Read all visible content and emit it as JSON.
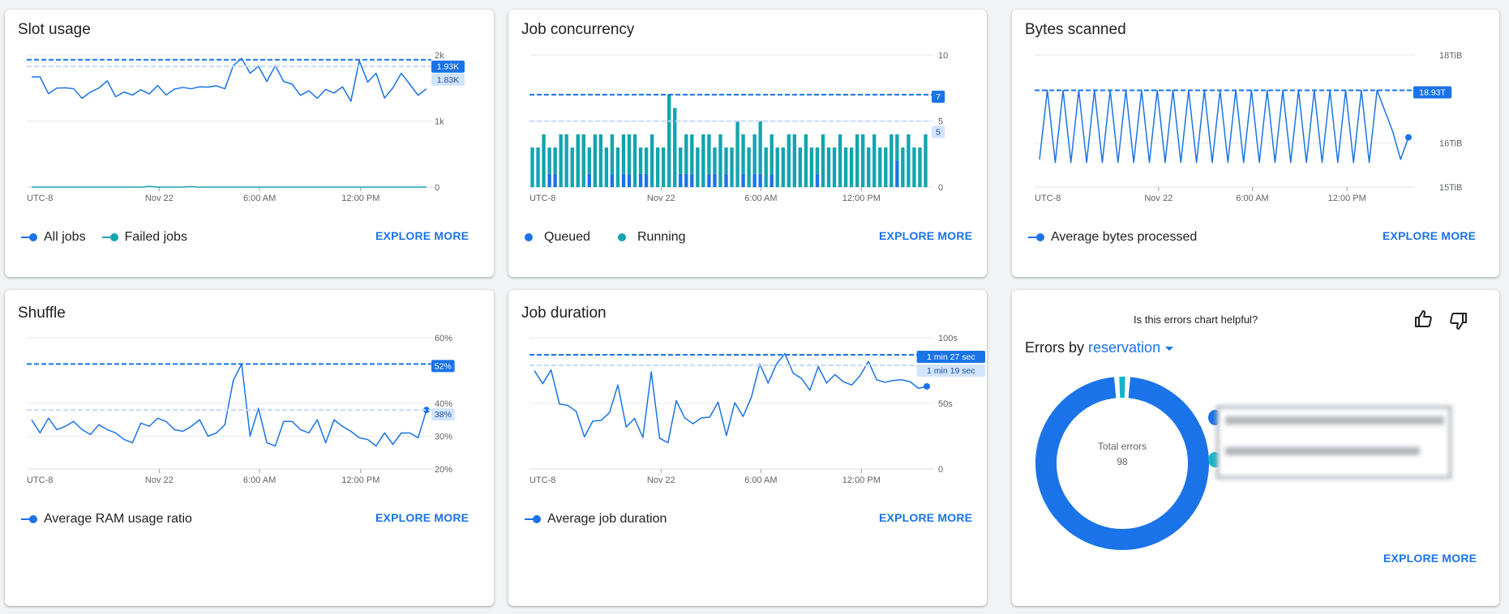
{
  "colors": {
    "blue": "#1a73e8",
    "teal": "#12a4af",
    "ref_light": "#c6dafc",
    "grid": "#e8eaed",
    "text": "#202124",
    "axis_text": "#5f6368"
  },
  "explore_label": "EXPLORE MORE",
  "slot": {
    "title": "Slot usage",
    "legend": [
      {
        "label": "All jobs",
        "color": "#1a73e8"
      },
      {
        "label": "Failed jobs",
        "color": "#12a4af"
      }
    ]
  },
  "concurrency": {
    "title": "Job concurrency",
    "legend": [
      {
        "label": "Queued",
        "color": "#1a73e8"
      },
      {
        "label": "Running",
        "color": "#12a4af"
      }
    ]
  },
  "bytes": {
    "title": "Bytes scanned",
    "legend": [
      {
        "label": "Average bytes processed",
        "color": "#1a73e8"
      }
    ]
  },
  "shuffle": {
    "title": "Shuffle",
    "legend": [
      {
        "label": "Average RAM usage ratio",
        "color": "#1a73e8"
      }
    ]
  },
  "duration": {
    "title": "Job duration",
    "legend": [
      {
        "label": "Average job duration",
        "color": "#1a73e8"
      }
    ]
  },
  "errors": {
    "feedback_question": "Is this errors chart helpful?",
    "title_prefix": "Errors by",
    "dimension": "reservation",
    "center_label": "Total errors",
    "center_value": "98"
  },
  "chart_data": [
    {
      "id": "slot",
      "type": "line",
      "ylim": [
        0,
        2000
      ],
      "y_ticks": [
        {
          "value": 0,
          "label": "0"
        },
        {
          "value": 1000,
          "label": "1k"
        },
        {
          "value": 2000,
          "label": "2k"
        }
      ],
      "x_ticks": [
        "UTC-8",
        "Nov 22",
        "6:00 AM",
        "12:00 PM"
      ],
      "series": [
        {
          "name": "All jobs",
          "color": "#1a73e8",
          "values": [
            1670,
            1670,
            1415,
            1500,
            1505,
            1490,
            1345,
            1440,
            1500,
            1610,
            1370,
            1440,
            1395,
            1475,
            1410,
            1540,
            1395,
            1485,
            1510,
            1490,
            1520,
            1515,
            1535,
            1490,
            1840,
            1950,
            1725,
            1830,
            1600,
            1840,
            1600,
            1560,
            1390,
            1460,
            1345,
            1480,
            1425,
            1520,
            1300,
            1915,
            1590,
            1725,
            1350,
            1505,
            1725,
            1560,
            1390,
            1490
          ]
        },
        {
          "name": "Failed jobs",
          "color": "#12a4af",
          "values": [
            0,
            0,
            0,
            0,
            0,
            0,
            0,
            0,
            0,
            0,
            0,
            0,
            0,
            0,
            10,
            0,
            0,
            0,
            0,
            8,
            0,
            0,
            0,
            0,
            0,
            0,
            0,
            0,
            0,
            0,
            0,
            0,
            0,
            0,
            0,
            0,
            0,
            0,
            0,
            0,
            0,
            0,
            0,
            0,
            0,
            0,
            0,
            0
          ]
        }
      ],
      "reference_lines": [
        {
          "value": 1930,
          "label": "1.93K",
          "style": "primary"
        },
        {
          "value": 1830,
          "label": "1.83K",
          "style": "secondary"
        }
      ]
    },
    {
      "id": "concurrency",
      "type": "bar",
      "stacked": true,
      "ylim": [
        0,
        10
      ],
      "y_ticks": [
        {
          "value": 0,
          "label": "0"
        },
        {
          "value": 5,
          "label": "5"
        },
        {
          "value": 10,
          "label": "10"
        }
      ],
      "x_ticks": [
        "UTC-8",
        "Nov 22",
        "6:00 AM",
        "12:00 PM"
      ],
      "series": [
        {
          "name": "Queued",
          "color": "#1a73e8",
          "values": [
            0,
            0,
            0,
            1,
            1,
            0,
            0,
            0,
            0,
            0,
            1,
            0,
            0,
            0,
            1,
            0,
            1,
            1,
            0,
            1,
            1,
            0,
            0,
            0,
            0,
            0,
            1,
            1,
            1,
            0,
            0,
            1,
            1,
            0,
            1,
            0,
            0,
            1,
            0,
            1,
            1,
            0,
            1,
            0,
            0,
            0,
            0,
            0,
            0,
            0,
            1,
            0,
            0,
            0,
            0,
            0,
            0,
            0,
            0,
            0,
            0,
            0,
            0,
            0,
            2,
            0,
            0,
            0,
            0,
            0
          ]
        },
        {
          "name": "Running",
          "color": "#12a4af",
          "values": [
            3,
            3,
            4,
            2,
            2,
            4,
            4,
            3,
            4,
            4,
            2,
            4,
            4,
            3,
            3,
            3,
            3,
            3,
            4,
            2,
            2,
            4,
            3,
            3,
            7,
            6,
            2,
            3,
            3,
            3,
            4,
            3,
            2,
            4,
            2,
            3,
            5,
            3,
            3,
            3,
            4,
            3,
            3,
            3,
            3,
            4,
            4,
            3,
            4,
            3,
            2,
            4,
            3,
            3,
            4,
            3,
            3,
            4,
            4,
            3,
            4,
            3,
            3,
            4,
            2,
            3,
            4,
            3,
            3,
            4
          ]
        }
      ],
      "reference_lines": [
        {
          "value": 7,
          "label": "7",
          "style": "primary"
        },
        {
          "value": 5,
          "label": "5",
          "style": "secondary"
        }
      ]
    },
    {
      "id": "bytes",
      "type": "line",
      "ylim": [
        15,
        18
      ],
      "y_unit": "TiB",
      "y_ticks": [
        {
          "value": 15,
          "label": "15TiB"
        },
        {
          "value": 16,
          "label": "16TiB"
        },
        {
          "value": 18,
          "label": "18TiB"
        }
      ],
      "x_ticks": [
        "UTC-8",
        "Nov 22",
        "6:00 AM",
        "12:00 PM"
      ],
      "series": [
        {
          "name": "Average bytes processed",
          "color": "#1a73e8",
          "end_dot": true,
          "values": [
            15.63,
            17.2,
            15.56,
            17.2,
            15.56,
            17.2,
            15.56,
            17.2,
            15.56,
            17.2,
            15.56,
            17.2,
            15.56,
            17.2,
            15.56,
            17.2,
            15.56,
            17.2,
            15.56,
            17.2,
            15.56,
            17.2,
            15.56,
            17.2,
            15.56,
            17.2,
            15.56,
            17.2,
            15.56,
            17.2,
            15.56,
            17.2,
            15.56,
            17.2,
            15.56,
            17.2,
            15.56,
            17.2,
            15.56,
            17.2,
            15.56,
            17.2,
            15.56,
            17.2,
            16.73,
            16.26,
            15.63,
            16.13
          ]
        }
      ],
      "reference_lines": [
        {
          "value": 17.2,
          "label": "18.93T",
          "style": "primary"
        }
      ]
    },
    {
      "id": "shuffle",
      "type": "line",
      "ylim": [
        20,
        60
      ],
      "y_unit": "%",
      "y_ticks": [
        {
          "value": 20,
          "label": "20%"
        },
        {
          "value": 30,
          "label": "30%"
        },
        {
          "value": 40,
          "label": "40%"
        },
        {
          "value": 60,
          "label": "60%"
        }
      ],
      "x_ticks": [
        "UTC-8",
        "Nov 22",
        "6:00 AM",
        "12:00 PM"
      ],
      "series": [
        {
          "name": "Average RAM usage ratio",
          "color": "#1a73e8",
          "end_dot": true,
          "values": [
            35,
            31,
            35.5,
            32,
            33,
            34.5,
            32,
            30.5,
            33.5,
            32,
            31,
            29,
            28,
            34,
            33,
            35.5,
            34.5,
            32,
            31.5,
            33,
            35,
            30,
            31,
            33.5,
            47,
            52,
            30,
            38.5,
            28,
            27,
            34.5,
            34.5,
            32,
            31,
            35,
            28,
            35,
            33,
            31.5,
            29.5,
            29,
            27,
            31,
            27.5,
            31,
            31,
            29.5,
            38
          ]
        }
      ],
      "reference_lines": [
        {
          "value": 52,
          "label": "52%",
          "style": "primary"
        },
        {
          "value": 38,
          "label": "38%",
          "style": "secondary"
        }
      ]
    },
    {
      "id": "duration",
      "type": "line",
      "ylim": [
        0,
        100
      ],
      "y_unit": "s",
      "y_ticks": [
        {
          "value": 0,
          "label": "0"
        },
        {
          "value": 50,
          "label": "50s"
        },
        {
          "value": 100,
          "label": "100s"
        }
      ],
      "x_ticks": [
        "UTC-8",
        "Nov 22",
        "6:00 AM",
        "12:00 PM"
      ],
      "series": [
        {
          "name": "Average job duration",
          "color": "#1a73e8",
          "end_dot": true,
          "values": [
            75,
            65,
            75.5,
            49.5,
            48.5,
            44,
            24.5,
            36.5,
            37,
            43,
            64,
            32,
            38.5,
            24,
            74,
            23.5,
            20,
            52,
            39,
            34.5,
            39,
            39.5,
            51,
            25.5,
            50.5,
            40,
            55,
            80,
            65.5,
            80,
            88,
            73,
            69,
            60,
            78,
            65.5,
            72,
            66.5,
            64,
            71,
            82,
            68,
            66,
            67.5,
            68,
            66.5,
            61.5,
            63
          ]
        }
      ],
      "reference_lines": [
        {
          "value": 87,
          "label": "1 min 27 sec",
          "style": "primary"
        },
        {
          "value": 79,
          "label": "1 min 19 sec",
          "style": "secondary"
        }
      ]
    },
    {
      "id": "errors",
      "type": "pie",
      "donut": true,
      "total": 98,
      "slices": [
        {
          "value": 96,
          "color": "#1a73e8"
        },
        {
          "value": 2,
          "color": "#12b5cb"
        }
      ]
    }
  ]
}
